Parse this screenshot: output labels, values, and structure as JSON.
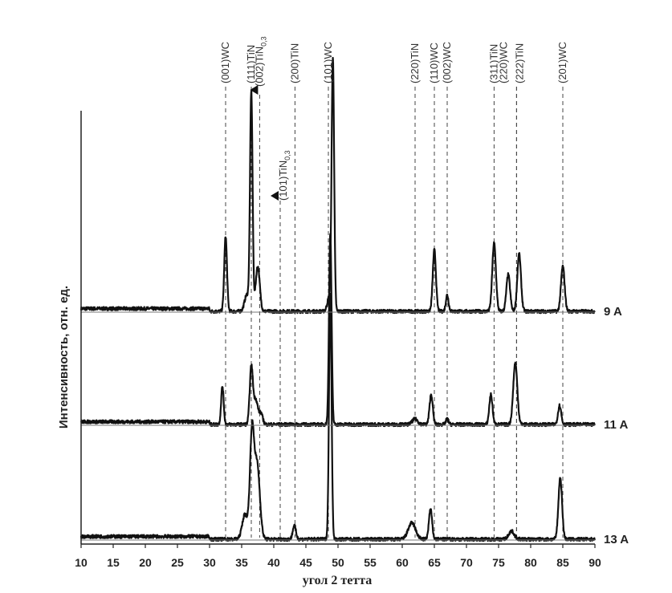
{
  "chart_data": {
    "type": "line",
    "title": "",
    "xlabel": "угол 2 тетта",
    "ylabel": "Интенсивность, отн. ед.",
    "xlim": [
      10,
      90
    ],
    "xticks": [
      10,
      15,
      20,
      25,
      30,
      35,
      40,
      45,
      50,
      55,
      60,
      65,
      70,
      75,
      80,
      85,
      90
    ],
    "grid": false,
    "legend": "labels at right end of each trace",
    "series": [
      {
        "name": "9 A",
        "offset": 2.0,
        "peaks": [
          {
            "x": 32.5,
            "h": 0.55,
            "w": 0.3
          },
          {
            "x": 35.8,
            "h": 0.12,
            "w": 0.5
          },
          {
            "x": 36.5,
            "h": 1.6,
            "w": 0.28
          },
          {
            "x": 37.5,
            "h": 0.33,
            "w": 0.45
          },
          {
            "x": 49.2,
            "h": 1.85,
            "w": 0.28
          },
          {
            "x": 48.6,
            "h": 0.1,
            "w": 0.4
          },
          {
            "x": 65.0,
            "h": 0.45,
            "w": 0.35
          },
          {
            "x": 67.0,
            "h": 0.12,
            "w": 0.3
          },
          {
            "x": 74.3,
            "h": 0.5,
            "w": 0.4
          },
          {
            "x": 76.5,
            "h": 0.27,
            "w": 0.4
          },
          {
            "x": 78.2,
            "h": 0.42,
            "w": 0.4
          },
          {
            "x": 85.0,
            "h": 0.33,
            "w": 0.4
          }
        ]
      },
      {
        "name": "11 A",
        "offset": 1.0,
        "peaks": [
          {
            "x": 32.0,
            "h": 0.28,
            "w": 0.28
          },
          {
            "x": 36.5,
            "h": 0.42,
            "w": 0.35
          },
          {
            "x": 37.2,
            "h": 0.18,
            "w": 0.45
          },
          {
            "x": 38.0,
            "h": 0.08,
            "w": 0.4
          },
          {
            "x": 48.8,
            "h": 1.4,
            "w": 0.28
          },
          {
            "x": 62.0,
            "h": 0.04,
            "w": 0.6
          },
          {
            "x": 64.5,
            "h": 0.22,
            "w": 0.35
          },
          {
            "x": 67.0,
            "h": 0.04,
            "w": 0.3
          },
          {
            "x": 73.8,
            "h": 0.22,
            "w": 0.35
          },
          {
            "x": 77.6,
            "h": 0.45,
            "w": 0.45
          },
          {
            "x": 84.5,
            "h": 0.14,
            "w": 0.35
          }
        ]
      },
      {
        "name": "13 A",
        "offset": 0.0,
        "peaks": [
          {
            "x": 35.5,
            "h": 0.18,
            "w": 0.6
          },
          {
            "x": 36.6,
            "h": 0.75,
            "w": 0.45
          },
          {
            "x": 37.4,
            "h": 0.55,
            "w": 0.6
          },
          {
            "x": 43.2,
            "h": 0.1,
            "w": 0.35
          },
          {
            "x": 48.8,
            "h": 1.8,
            "w": 0.28
          },
          {
            "x": 61.5,
            "h": 0.12,
            "w": 0.8
          },
          {
            "x": 64.4,
            "h": 0.22,
            "w": 0.35
          },
          {
            "x": 77.0,
            "h": 0.06,
            "w": 0.6
          },
          {
            "x": 84.6,
            "h": 0.45,
            "w": 0.4
          }
        ]
      }
    ],
    "annotations": [
      {
        "text": "(001)WC",
        "x": 32.5,
        "sub": ""
      },
      {
        "text": "(111)TiN",
        "x": 36.5,
        "sub": ""
      },
      {
        "text": "(002)TiN",
        "x": 37.8,
        "sub": "0,3"
      },
      {
        "text": "(200)TiN",
        "x": 43.3,
        "sub": ""
      },
      {
        "text": "(101)TiN",
        "x": 41.0,
        "sub": "0,3"
      },
      {
        "text": "(101)WC",
        "x": 48.5,
        "sub": ""
      },
      {
        "text": "(220)TiN",
        "x": 62.0,
        "sub": ""
      },
      {
        "text": "(110)WC",
        "x": 65.0,
        "sub": ""
      },
      {
        "text": "(002)WC",
        "x": 67.0,
        "sub": ""
      },
      {
        "text": "(311)TiN",
        "x": 74.3,
        "sub": ""
      },
      {
        "text": "(220)WC",
        "x": 77.8,
        "sub": ""
      },
      {
        "text": "(222)TiN",
        "x": 77.8,
        "sub": ""
      },
      {
        "text": "(201)WC",
        "x": 85.0,
        "sub": ""
      }
    ]
  }
}
